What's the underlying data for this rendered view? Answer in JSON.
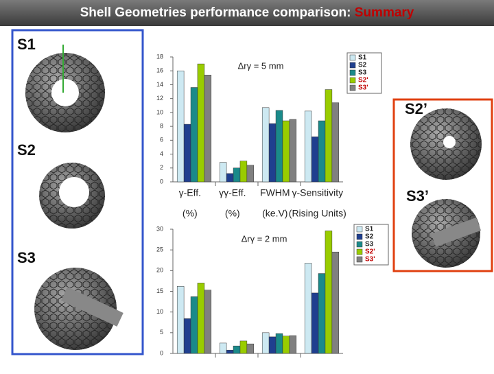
{
  "slide": {
    "title": "Shell Geometries performance comparison: ",
    "title_highlight": "Summary",
    "labels": [
      "S1",
      "S2",
      "S3",
      "S2’",
      "S3’"
    ]
  },
  "chart_data": [
    {
      "type": "bar",
      "annotation": "Δrγ = 5 mm",
      "categories": [
        "γ-Eff.",
        "γγ-Eff.",
        "FWHM",
        "γ-Sensitivity"
      ],
      "category_units": [
        "(%)",
        "(%)",
        "(ke.V)",
        "(Rising Units)"
      ],
      "series": [
        {
          "name": "S1",
          "color": "#cde9f2",
          "values": [
            16,
            2.8,
            10.7,
            10.2
          ]
        },
        {
          "name": "S2",
          "color": "#1f3f8f",
          "values": [
            8.3,
            1.2,
            8.4,
            6.5
          ]
        },
        {
          "name": "S3",
          "color": "#1a8a8a",
          "values": [
            13.6,
            2.0,
            10.3,
            8.8
          ]
        },
        {
          "name": "S2'",
          "color": "#99cc00",
          "values": [
            17,
            3.0,
            8.8,
            13.3
          ]
        },
        {
          "name": "S3'",
          "color": "#808080",
          "values": [
            15.4,
            2.4,
            9.0,
            11.4
          ]
        }
      ],
      "ylim": [
        0,
        18
      ],
      "yticks": [
        0,
        2,
        4,
        6,
        8,
        10,
        12,
        14,
        16,
        18
      ],
      "grid": false
    },
    {
      "type": "bar",
      "annotation": "Δrγ = 2 mm",
      "categories": [
        null,
        null,
        null,
        null
      ],
      "series": [
        {
          "name": "S1",
          "color": "#cde9f2",
          "values": [
            16.2,
            2.5,
            5.0,
            21.8
          ]
        },
        {
          "name": "S2",
          "color": "#1f3f8f",
          "values": [
            8.4,
            0.8,
            4.0,
            14.6
          ]
        },
        {
          "name": "S3",
          "color": "#1a8a8a",
          "values": [
            13.7,
            1.8,
            4.8,
            19.3
          ]
        },
        {
          "name": "S2'",
          "color": "#99cc00",
          "values": [
            17,
            3.0,
            4.2,
            29.6
          ]
        },
        {
          "name": "S3'",
          "color": "#808080",
          "values": [
            15.3,
            2.3,
            4.3,
            24.5
          ]
        }
      ],
      "ylim": [
        0,
        30
      ],
      "yticks": [
        0,
        5,
        10,
        15,
        20,
        25,
        30
      ],
      "grid": false
    }
  ]
}
